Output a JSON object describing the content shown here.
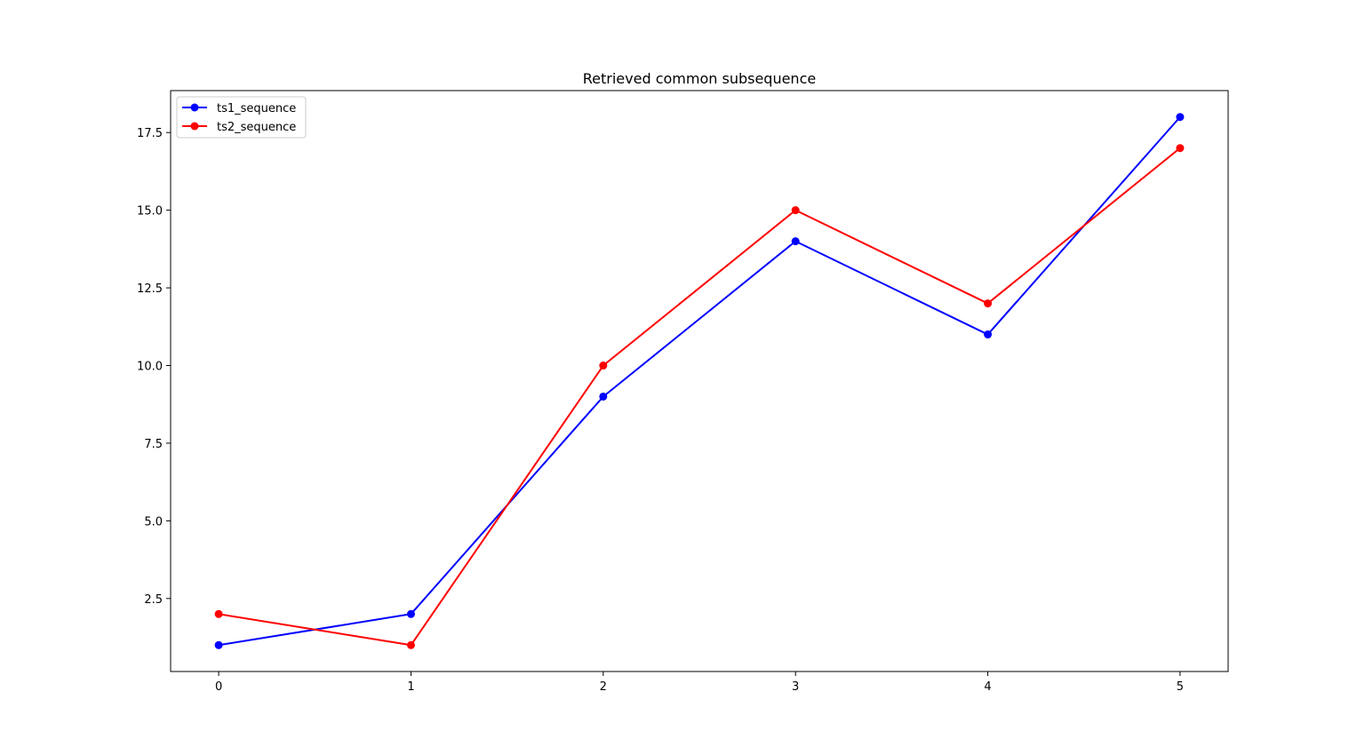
{
  "chart_data": {
    "type": "line",
    "title": "Retrieved common subsequence",
    "xlabel": "",
    "ylabel": "",
    "x": [
      0,
      1,
      2,
      3,
      4,
      5
    ],
    "xticks": [
      "0",
      "1",
      "2",
      "3",
      "4",
      "5"
    ],
    "yticks": [
      "2.5",
      "5.0",
      "7.5",
      "10.0",
      "12.5",
      "15.0",
      "17.5"
    ],
    "xlim": [
      -0.25,
      5.25
    ],
    "ylim": [
      0.15,
      18.85
    ],
    "grid": false,
    "legend_position": "top-left",
    "series": [
      {
        "name": "ts1_sequence",
        "color": "#0000ff",
        "marker": "circle",
        "values": [
          1,
          2,
          9,
          14,
          11,
          18
        ]
      },
      {
        "name": "ts2_sequence",
        "color": "#ff0000",
        "marker": "circle",
        "values": [
          2,
          1,
          10,
          15,
          12,
          17
        ]
      }
    ]
  }
}
